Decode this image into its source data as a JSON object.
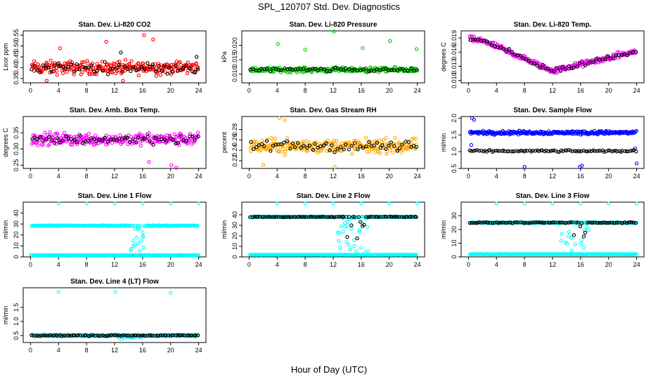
{
  "page": {
    "title": "SPL_120707  Std. Dev. Diagnostics",
    "xlabel": "Hour of Day (UTC)"
  },
  "colors": {
    "black": "#000000",
    "red": "#ff0000",
    "green": "#00cc00",
    "magenta": "#ff00ff",
    "orange": "#ffaa00",
    "blue": "#0000ff",
    "cyan": "#00ffff"
  },
  "chart_data": [
    {
      "type": "scatter",
      "title": "Stan. Dev. Li-820 CO2",
      "ylabel": "Licor ppm",
      "xlim": [
        0,
        24
      ],
      "xticks": [
        "0",
        "4",
        "8",
        "12",
        "16",
        "20",
        "24"
      ],
      "ylim": [
        0.33,
        0.57
      ],
      "yticks": [
        "0.35",
        "0.40",
        "0.45",
        "0.50",
        "0.55"
      ],
      "series": [
        {
          "color": "#ff0000",
          "pattern": {
            "base": 0.4,
            "spread": 0.045,
            "outliers": [
              [
                4.2,
                0.49
              ],
              [
                10.8,
                0.52
              ],
              [
                16.2,
                0.55
              ],
              [
                17.5,
                0.53
              ],
              [
                2.3,
                0.34
              ],
              [
                13.2,
                0.34
              ]
            ]
          }
        },
        {
          "color": "#000000",
          "pattern": {
            "base": 0.4,
            "spread": 0.035,
            "outliers": [
              [
                23.7,
                0.45
              ],
              [
                12.9,
                0.47
              ]
            ]
          }
        }
      ]
    },
    {
      "type": "scatter",
      "title": "Stan. Dev. Li-820 Pressure",
      "ylabel": "kPa",
      "xlim": [
        0,
        24
      ],
      "xticks": [
        "0",
        "4",
        "8",
        "12",
        "16",
        "20",
        "24"
      ],
      "ylim": [
        0.007,
        0.025
      ],
      "yticks": [
        "0.010",
        "0.015",
        "0.020"
      ],
      "series": [
        {
          "color": "#00cc00",
          "pattern": {
            "base": 0.0115,
            "spread": 0.0012,
            "outliers": [
              [
                4.1,
                0.0205
              ],
              [
                8.0,
                0.0185
              ],
              [
                12.1,
                0.0248
              ],
              [
                16.2,
                0.019
              ],
              [
                20.1,
                0.0215
              ],
              [
                23.9,
                0.0187
              ]
            ]
          }
        },
        {
          "color": "#000000",
          "pattern": {
            "base": 0.0115,
            "spread": 0.001,
            "outliers": []
          }
        }
      ]
    },
    {
      "type": "scatter",
      "title": "Stan. Dev. Li-820 Temp.",
      "ylabel": "degrees C",
      "xlim": [
        0,
        24
      ],
      "xticks": [
        "0",
        "4",
        "8",
        "12",
        "16",
        "20",
        "24"
      ],
      "ylim": [
        0.0095,
        0.0205
      ],
      "yticks": [
        "0.010",
        "0.013",
        "0.016",
        "0.019"
      ],
      "series": [
        {
          "color": "#ff00ff",
          "pattern": {
            "curve": "temp",
            "spread": 0.0009,
            "outliers": []
          }
        },
        {
          "color": "#000000",
          "pattern": {
            "curve": "temp",
            "spread": 0.0008,
            "outliers": []
          }
        }
      ]
    },
    {
      "type": "scatter",
      "title": "Stan. Dev. Amb. Box Temp.",
      "ylabel": "degrees C",
      "xlim": [
        0,
        24
      ],
      "xticks": [
        "0",
        "4",
        "8",
        "12",
        "16",
        "20",
        "24"
      ],
      "ylim": [
        0.24,
        0.4
      ],
      "yticks": [
        "0.25",
        "0.30",
        "0.35"
      ],
      "series": [
        {
          "color": "#ff00ff",
          "pattern": {
            "base": 0.33,
            "spread": 0.028,
            "outliers": [
              [
                20.1,
                0.25
              ],
              [
                20.8,
                0.24
              ],
              [
                16.9,
                0.26
              ]
            ]
          }
        },
        {
          "color": "#000000",
          "pattern": {
            "base": 0.33,
            "spread": 0.022,
            "outliers": []
          }
        }
      ]
    },
    {
      "type": "scatter",
      "title": "Stan. Dev. Gas Stream RH",
      "ylabel": "percent",
      "xlim": [
        0,
        24
      ],
      "xticks": [
        "0",
        "4",
        "8",
        "12",
        "16",
        "20",
        "24"
      ],
      "ylim": [
        0.205,
        0.305
      ],
      "yticks": [
        "0.22",
        "0.24",
        "0.26",
        "0.28"
      ],
      "series": [
        {
          "color": "#ffaa00",
          "pattern": {
            "base": 0.248,
            "spread": 0.02,
            "outliers": [
              [
                4.3,
                0.302
              ],
              [
                5.1,
                0.298
              ],
              [
                2.0,
                0.212
              ],
              [
                12.2,
                0.208
              ]
            ]
          }
        },
        {
          "color": "#000000",
          "pattern": {
            "base": 0.248,
            "spread": 0.016,
            "outliers": []
          }
        }
      ]
    },
    {
      "type": "scatter",
      "title": "Stan. Dev. Sample Flow",
      "ylabel": "ml/min",
      "xlim": [
        0,
        24
      ],
      "xticks": [
        "0",
        "4",
        "8",
        "12",
        "16",
        "20",
        "24"
      ],
      "ylim": [
        0.5,
        2.05
      ],
      "yticks": [
        "0.5",
        "1.0",
        "1.5",
        "2.0"
      ],
      "series": [
        {
          "color": "#0000ff",
          "pattern": {
            "base": 1.57,
            "spread": 0.08,
            "outliers": [
              [
                0.5,
                2.0
              ],
              [
                0.8,
                1.95
              ],
              [
                8.0,
                0.55
              ],
              [
                15.9,
                0.55
              ],
              [
                16.2,
                0.58
              ],
              [
                24.0,
                0.65
              ],
              [
                0.4,
                1.2
              ],
              [
                23.8,
                1.1
              ]
            ]
          }
        },
        {
          "color": "#000000",
          "pattern": {
            "base": 1.02,
            "spread": 0.04,
            "sparse": true,
            "outliers": []
          }
        }
      ]
    },
    {
      "type": "scatter",
      "title": "Stan. Dev. Line 1 Flow",
      "ylabel": "ml/min",
      "xlim": [
        0,
        24
      ],
      "xticks": [
        "0",
        "4",
        "8",
        "12",
        "16",
        "20",
        "24"
      ],
      "ylim": [
        0,
        50
      ],
      "yticks": [
        "0",
        "10",
        "20",
        "30",
        "40"
      ],
      "series": [
        {
          "color": "#00ffff",
          "pattern": {
            "base": 28.5,
            "spread": 0.6,
            "dip": [
              14.2,
              16.2,
              5
            ],
            "outliers": [
              [
                4.0,
                49
              ],
              [
                8.0,
                49
              ],
              [
                12.0,
                49
              ],
              [
                16.0,
                49
              ],
              [
                20.0,
                49
              ],
              [
                24.0,
                49
              ]
            ]
          }
        },
        {
          "color": "#000000",
          "pattern": {
            "base": 1.5,
            "spread": 0.1,
            "outliers": []
          }
        },
        {
          "color": "#00ffff",
          "pattern": {
            "base": 1.5,
            "spread": 0.1,
            "outliers": []
          }
        }
      ]
    },
    {
      "type": "scatter",
      "title": "Stan. Dev. Line 2 Flow",
      "ylabel": "ml/min",
      "xlim": [
        0,
        24
      ],
      "xticks": [
        "0",
        "4",
        "8",
        "12",
        "16",
        "20",
        "24"
      ],
      "ylim": [
        0,
        52
      ],
      "yticks": [
        "0",
        "10",
        "20",
        "30",
        "40"
      ],
      "series": [
        {
          "color": "#00ffff",
          "pattern": {
            "base": 38,
            "spread": 0.6,
            "dip": [
              12.5,
              17.0,
              4
            ],
            "outliers": [
              [
                4.0,
                51
              ],
              [
                8.0,
                51
              ],
              [
                12.0,
                51
              ],
              [
                16.0,
                51
              ],
              [
                20.0,
                51
              ],
              [
                24.0,
                51
              ]
            ]
          }
        },
        {
          "color": "#000000",
          "pattern": {
            "base": 38,
            "spread": 0.5,
            "dip": [
              13.5,
              16.8,
              8
            ],
            "sparse": true,
            "outliers": []
          }
        },
        {
          "color": "#00ffff",
          "pattern": {
            "base": 2,
            "spread": 0.2,
            "outliers": []
          }
        }
      ]
    },
    {
      "type": "scatter",
      "title": "Stan. Dev. Line 3 Flow",
      "ylabel": "ml/min",
      "xlim": [
        0,
        24
      ],
      "xticks": [
        "0",
        "4",
        "8",
        "12",
        "16",
        "20",
        "24"
      ],
      "ylim": [
        0,
        40
      ],
      "yticks": [
        "0",
        "10",
        "20",
        "30"
      ],
      "series": [
        {
          "color": "#00ffff",
          "pattern": {
            "base": 25,
            "spread": 0.6,
            "dip": [
              13.2,
              17.2,
              4
            ],
            "outliers": [
              [
                4.0,
                39
              ],
              [
                8.0,
                39
              ],
              [
                12.0,
                39
              ],
              [
                16.0,
                39
              ],
              [
                20.0,
                39
              ],
              [
                24.0,
                39
              ]
            ]
          }
        },
        {
          "color": "#000000",
          "pattern": {
            "base": 25,
            "spread": 0.5,
            "dip": [
              15.0,
              16.8,
              10
            ],
            "sparse": true,
            "outliers": []
          }
        },
        {
          "color": "#00ffff",
          "pattern": {
            "base": 2,
            "spread": 0.2,
            "outliers": []
          }
        }
      ]
    },
    {
      "type": "scatter",
      "title": "Stan. Dev. Line 4 (LT) Flow",
      "ylabel": "ml/min",
      "xlim": [
        0,
        24
      ],
      "xticks": [
        "0",
        "4",
        "8",
        "12",
        "16",
        "20",
        "24"
      ],
      "ylim": [
        0.25,
        2.2
      ],
      "yticks": [
        "0.5",
        "1.0",
        "1.5"
      ],
      "series": [
        {
          "color": "#00ffff",
          "pattern": {
            "base": 0.5,
            "spread": 0.05,
            "dip": [
              12.5,
              16.5,
              0.38
            ],
            "outliers": [
              [
                4.0,
                2.05
              ],
              [
                12.1,
                2.05
              ],
              [
                20.0,
                2.02
              ]
            ]
          }
        },
        {
          "color": "#000000",
          "pattern": {
            "base": 0.5,
            "spread": 0.03,
            "sparse": true,
            "outliers": []
          }
        }
      ]
    }
  ]
}
